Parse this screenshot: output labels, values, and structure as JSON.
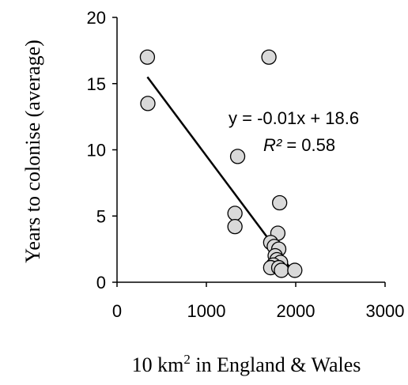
{
  "chart_data": {
    "type": "scatter",
    "title": "",
    "xlabel_main": "10 km",
    "xlabel_sup": "2",
    "xlabel_rest": " in England & Wales",
    "ylabel": "Years to colonise (average)",
    "xlim": [
      0,
      3000
    ],
    "ylim": [
      0,
      20
    ],
    "xticks": [
      0,
      1000,
      2000,
      3000
    ],
    "yticks": [
      0,
      5,
      10,
      15,
      20
    ],
    "grid": false,
    "legend": "none",
    "marker_fill": "#d9d9d9",
    "marker_stroke": "#000000",
    "series": [
      {
        "points": [
          {
            "x": 340,
            "y": 17.0
          },
          {
            "x": 345,
            "y": 13.5
          },
          {
            "x": 1700,
            "y": 17.0
          },
          {
            "x": 1350,
            "y": 9.5
          },
          {
            "x": 1320,
            "y": 5.2
          },
          {
            "x": 1320,
            "y": 4.2
          },
          {
            "x": 1820,
            "y": 6.0
          },
          {
            "x": 1800,
            "y": 3.7
          },
          {
            "x": 1720,
            "y": 3.0
          },
          {
            "x": 1760,
            "y": 2.7
          },
          {
            "x": 1810,
            "y": 2.5
          },
          {
            "x": 1770,
            "y": 2.0
          },
          {
            "x": 1790,
            "y": 1.7
          },
          {
            "x": 1830,
            "y": 1.5
          },
          {
            "x": 1750,
            "y": 1.3
          },
          {
            "x": 1720,
            "y": 1.1
          },
          {
            "x": 1810,
            "y": 1.1
          },
          {
            "x": 1840,
            "y": 0.9
          },
          {
            "x": 1990,
            "y": 0.9
          }
        ]
      }
    ],
    "trendline": {
      "x_start": 340,
      "x_end": 1980,
      "y_start": 15.5,
      "y_end": 0.7,
      "equation": "y = -0.01x + 18.6",
      "r2_label": "R²",
      "r2_value": " = 0.58"
    }
  }
}
